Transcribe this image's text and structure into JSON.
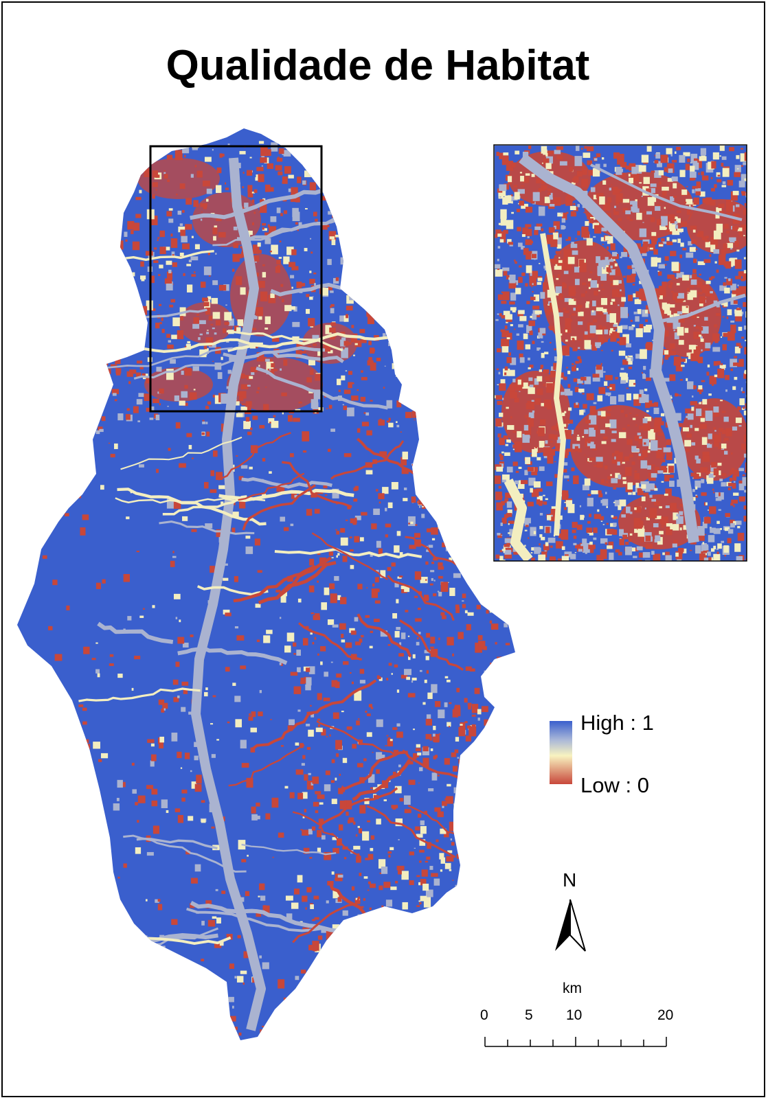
{
  "title": "Qualidade de Habitat",
  "legend": {
    "high_label": "High : 1",
    "low_label": "Low : 0",
    "colors": {
      "high": "#3a5fcd",
      "mid_high": "#aab8d8",
      "mid": "#f8f3c0",
      "low": "#c8473a"
    }
  },
  "north_arrow": {
    "label": "N"
  },
  "scale_bar": {
    "unit": "km",
    "ticks": [
      "0",
      "5",
      "10",
      "20"
    ]
  },
  "colors": {
    "background": "#3a5fcd",
    "degraded": "#c8473a",
    "transition": "#aab3d0",
    "low_mid": "#f3eec0"
  }
}
